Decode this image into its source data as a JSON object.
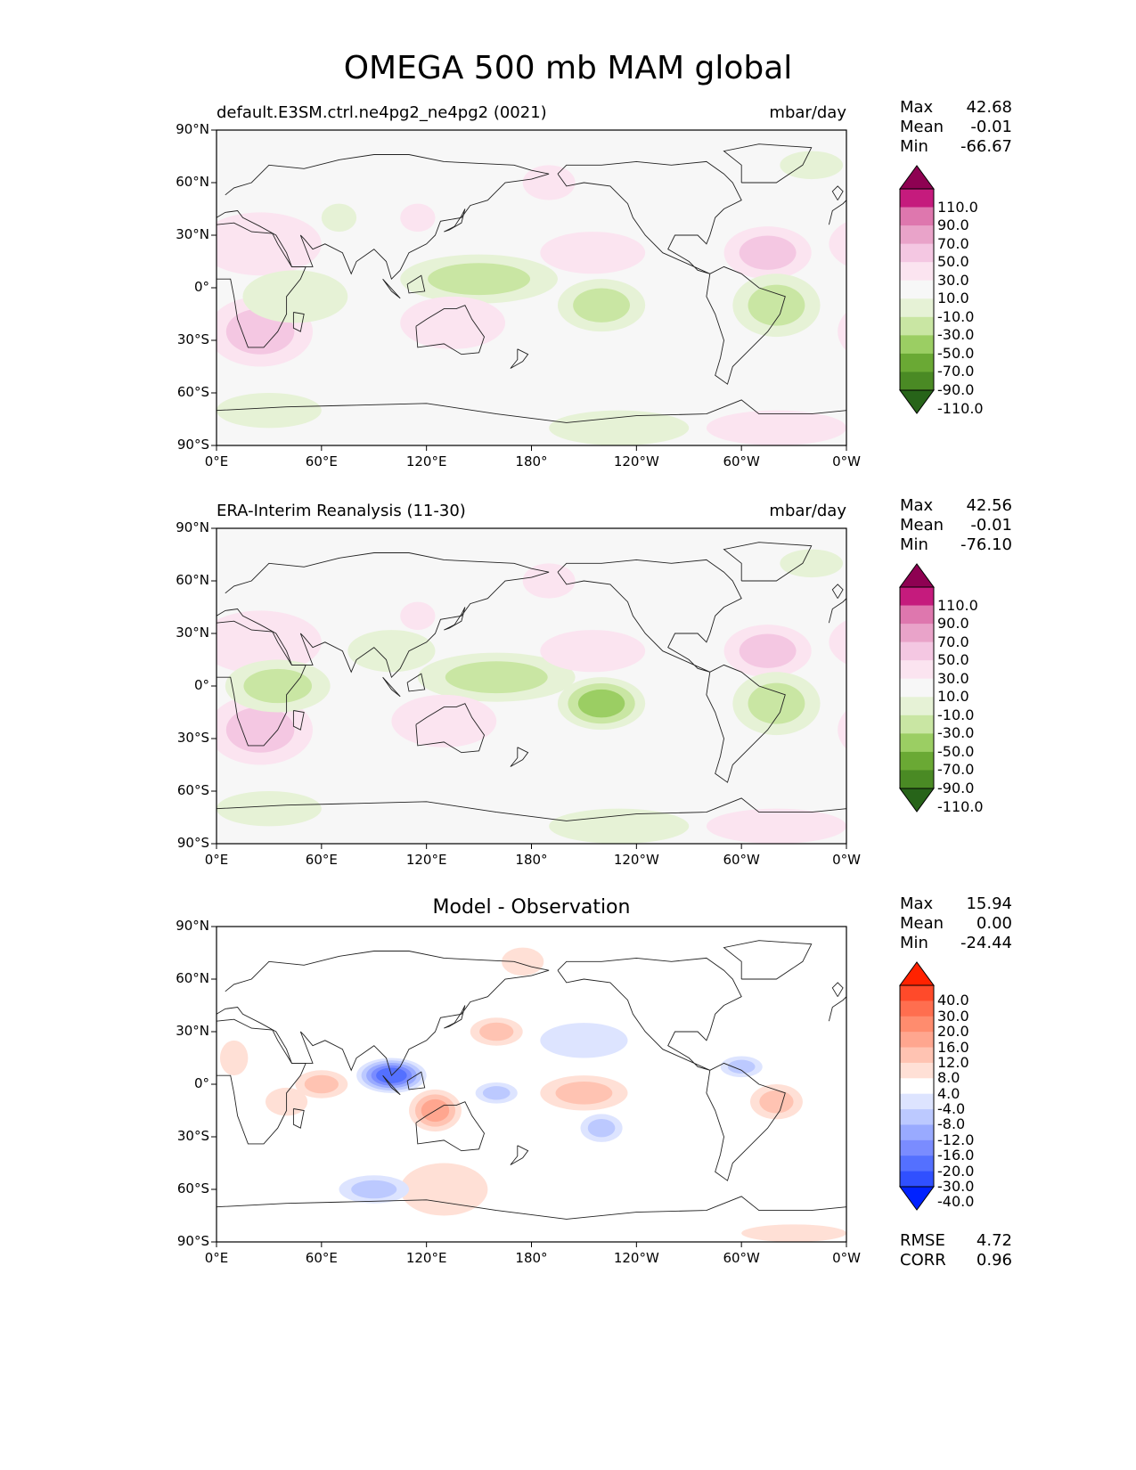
{
  "title": "OMEGA 500 mb MAM global",
  "lat_ticks": [
    "90°N",
    "60°N",
    "30°N",
    "0°",
    "30°S",
    "60°S",
    "90°S"
  ],
  "lon_ticks": [
    "0°E",
    "60°E",
    "120°E",
    "180°",
    "120°W",
    "60°W",
    "0°W"
  ],
  "panels": [
    {
      "id": "model",
      "title_left": "default.E3SM.ctrl.ne4pg2_ne4pg2 (0021)",
      "title_right": "mbar/day",
      "title_center": "",
      "stats": [
        {
          "label": "Max",
          "value": "42.68"
        },
        {
          "label": "Mean",
          "value": "-0.01"
        },
        {
          "label": "Min",
          "value": "-66.67"
        }
      ],
      "colorbar": {
        "labels": [
          "110.0",
          "90.0",
          "70.0",
          "50.0",
          "30.0",
          "10.0",
          "-10.0",
          "-30.0",
          "-50.0",
          "-70.0",
          "-90.0",
          "-110.0"
        ],
        "colors": [
          "#8e0152",
          "#c51b7d",
          "#de77ae",
          "#e9a3c9",
          "#f4c7e2",
          "#fbe4f0",
          "#f7f7f7",
          "#e6f2d6",
          "#c9e6a3",
          "#9bce63",
          "#6aa934",
          "#4a8a24",
          "#276419"
        ]
      },
      "fields": [
        {
          "lon": 25,
          "lat": 25,
          "rx": 35,
          "ry": 18,
          "v": 25
        },
        {
          "lon": 25,
          "lat": -25,
          "rx": 30,
          "ry": 20,
          "v": 30
        },
        {
          "lon": 45,
          "lat": -5,
          "rx": 30,
          "ry": 15,
          "v": -25
        },
        {
          "lon": 115,
          "lat": 40,
          "rx": 10,
          "ry": 8,
          "v": 20
        },
        {
          "lon": 70,
          "lat": 40,
          "rx": 10,
          "ry": 8,
          "v": -15
        },
        {
          "lon": 150,
          "lat": 5,
          "rx": 45,
          "ry": 14,
          "v": -30
        },
        {
          "lon": 220,
          "lat": -10,
          "rx": 25,
          "ry": 15,
          "v": -45
        },
        {
          "lon": 135,
          "lat": -20,
          "rx": 30,
          "ry": 15,
          "v": 25
        },
        {
          "lon": 215,
          "lat": 20,
          "rx": 30,
          "ry": 12,
          "v": 25
        },
        {
          "lon": 315,
          "lat": 20,
          "rx": 25,
          "ry": 15,
          "v": 30
        },
        {
          "lon": 320,
          "lat": -10,
          "rx": 25,
          "ry": 18,
          "v": -30
        },
        {
          "lon": 190,
          "lat": 60,
          "rx": 15,
          "ry": 10,
          "v": 20
        },
        {
          "lon": 340,
          "lat": 70,
          "rx": 18,
          "ry": 8,
          "v": -15
        },
        {
          "lon": 230,
          "lat": -80,
          "rx": 40,
          "ry": 10,
          "v": -15
        },
        {
          "lon": 320,
          "lat": -80,
          "rx": 40,
          "ry": 10,
          "v": 15
        },
        {
          "lon": 30,
          "lat": -70,
          "rx": 30,
          "ry": 10,
          "v": -20
        }
      ]
    },
    {
      "id": "obs",
      "title_left": "ERA-Interim Reanalysis (11-30)",
      "title_right": "mbar/day",
      "title_center": "",
      "stats": [
        {
          "label": "Max",
          "value": "42.56"
        },
        {
          "label": "Mean",
          "value": "-0.01"
        },
        {
          "label": "Min",
          "value": "-76.10"
        }
      ],
      "colorbar": {
        "labels": [
          "110.0",
          "90.0",
          "70.0",
          "50.0",
          "30.0",
          "10.0",
          "-10.0",
          "-30.0",
          "-50.0",
          "-70.0",
          "-90.0",
          "-110.0"
        ],
        "colors": [
          "#8e0152",
          "#c51b7d",
          "#de77ae",
          "#e9a3c9",
          "#f4c7e2",
          "#fbe4f0",
          "#f7f7f7",
          "#e6f2d6",
          "#c9e6a3",
          "#9bce63",
          "#6aa934",
          "#4a8a24",
          "#276419"
        ]
      },
      "fields": [
        {
          "lon": 25,
          "lat": 25,
          "rx": 35,
          "ry": 18,
          "v": 20
        },
        {
          "lon": 25,
          "lat": -25,
          "rx": 30,
          "ry": 20,
          "v": 30
        },
        {
          "lon": 35,
          "lat": 0,
          "rx": 30,
          "ry": 15,
          "v": -45
        },
        {
          "lon": 115,
          "lat": 40,
          "rx": 10,
          "ry": 8,
          "v": 20
        },
        {
          "lon": 100,
          "lat": 20,
          "rx": 25,
          "ry": 12,
          "v": -15
        },
        {
          "lon": 160,
          "lat": 5,
          "rx": 45,
          "ry": 14,
          "v": -30
        },
        {
          "lon": 220,
          "lat": -10,
          "rx": 25,
          "ry": 15,
          "v": -50
        },
        {
          "lon": 130,
          "lat": -20,
          "rx": 30,
          "ry": 15,
          "v": 20
        },
        {
          "lon": 215,
          "lat": 20,
          "rx": 30,
          "ry": 12,
          "v": 25
        },
        {
          "lon": 315,
          "lat": 20,
          "rx": 25,
          "ry": 15,
          "v": 30
        },
        {
          "lon": 320,
          "lat": -10,
          "rx": 25,
          "ry": 18,
          "v": -35
        },
        {
          "lon": 190,
          "lat": 60,
          "rx": 15,
          "ry": 10,
          "v": 20
        },
        {
          "lon": 340,
          "lat": 70,
          "rx": 18,
          "ry": 8,
          "v": -15
        },
        {
          "lon": 230,
          "lat": -80,
          "rx": 40,
          "ry": 10,
          "v": -15
        },
        {
          "lon": 320,
          "lat": -80,
          "rx": 40,
          "ry": 10,
          "v": 15
        },
        {
          "lon": 30,
          "lat": -70,
          "rx": 30,
          "ry": 10,
          "v": -20
        }
      ]
    },
    {
      "id": "diff",
      "title_left": "",
      "title_right": "",
      "title_center": "Model - Observation",
      "stats": [
        {
          "label": "Max",
          "value": "15.94"
        },
        {
          "label": "Mean",
          "value": "0.00"
        },
        {
          "label": "Min",
          "value": "-24.44"
        }
      ],
      "extra_stats": [
        {
          "label": "RMSE",
          "value": "4.72"
        },
        {
          "label": "CORR",
          "value": "0.96"
        }
      ],
      "colorbar": {
        "labels": [
          "40.0",
          "30.0",
          "20.0",
          "16.0",
          "12.0",
          "8.0",
          "4.0",
          "-4.0",
          "-8.0",
          "-12.0",
          "-16.0",
          "-20.0",
          "-30.0",
          "-40.0"
        ],
        "colors": [
          "#ff2200",
          "#ff4a2a",
          "#ff6e4f",
          "#ff8c6e",
          "#ffa68f",
          "#ffc3b2",
          "#ffe0d6",
          "#ffffff",
          "#dde4ff",
          "#bcc9ff",
          "#99aaff",
          "#7a8cff",
          "#5470ff",
          "#3050ff",
          "#0022ff"
        ]
      },
      "fields": [
        {
          "lon": 100,
          "lat": 5,
          "rx": 20,
          "ry": 10,
          "v": -22
        },
        {
          "lon": 125,
          "lat": -15,
          "rx": 15,
          "ry": 12,
          "v": 14
        },
        {
          "lon": 60,
          "lat": 0,
          "rx": 15,
          "ry": 8,
          "v": 8
        },
        {
          "lon": 40,
          "lat": -10,
          "rx": 12,
          "ry": 8,
          "v": 6
        },
        {
          "lon": 130,
          "lat": -60,
          "rx": 25,
          "ry": 15,
          "v": 6
        },
        {
          "lon": 90,
          "lat": -60,
          "rx": 20,
          "ry": 8,
          "v": -8
        },
        {
          "lon": 160,
          "lat": 30,
          "rx": 15,
          "ry": 8,
          "v": 8
        },
        {
          "lon": 210,
          "lat": 25,
          "rx": 25,
          "ry": 10,
          "v": -6
        },
        {
          "lon": 210,
          "lat": -5,
          "rx": 25,
          "ry": 10,
          "v": 8
        },
        {
          "lon": 160,
          "lat": -5,
          "rx": 12,
          "ry": 6,
          "v": -10
        },
        {
          "lon": 220,
          "lat": -25,
          "rx": 12,
          "ry": 8,
          "v": -8
        },
        {
          "lon": 320,
          "lat": -10,
          "rx": 15,
          "ry": 10,
          "v": 8
        },
        {
          "lon": 300,
          "lat": 10,
          "rx": 12,
          "ry": 6,
          "v": -10
        },
        {
          "lon": 330,
          "lat": -85,
          "rx": 30,
          "ry": 5,
          "v": 6
        },
        {
          "lon": 175,
          "lat": 70,
          "rx": 12,
          "ry": 8,
          "v": 6
        },
        {
          "lon": 10,
          "lat": 15,
          "rx": 8,
          "ry": 10,
          "v": 5
        }
      ]
    }
  ]
}
